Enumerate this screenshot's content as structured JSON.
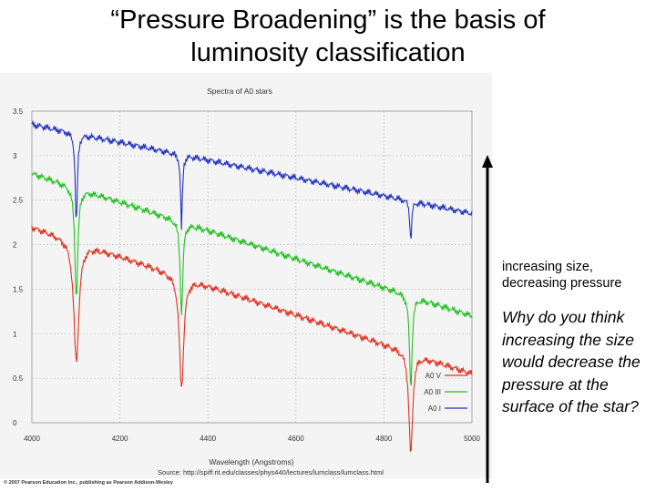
{
  "slide": {
    "title_line1": "“Pressure Broadening” is the basis of",
    "title_line2": "luminosity classification",
    "side_label_line1": "increasing size,",
    "side_label_line2": "decreasing pressure",
    "question": "Why do you think increasing the size would decrease the pressure at the surface of the star?",
    "credit": "© 2007 Pearson Education Inc., publishing as Pearson Addison-Wesley"
  },
  "colors": {
    "v": "#e03020",
    "iii": "#20c020",
    "i": "#2030c0"
  },
  "chart_data": {
    "type": "line",
    "title": "Spectra of A0 stars",
    "xlabel": "Wavelength (Angstroms)",
    "ylabel": "",
    "xlim": [
      4000,
      5000
    ],
    "ylim": [
      0,
      3.5
    ],
    "grid": true,
    "legend": "bottom-right",
    "x_ticks": [
      "4000",
      "4200",
      "4400",
      "4600",
      "4800",
      "5000"
    ],
    "y_ticks": [
      "0",
      "0.5",
      "1",
      "1.5",
      "2",
      "2.5",
      "3",
      "3.5"
    ],
    "source": "Source: http://spiff.rit.edu/classes/phys440/lectures/lumclass/lumclass.html",
    "series": [
      {
        "name": "A0 V",
        "color_key": "v",
        "start": 2.2,
        "end": 0.55,
        "lines": [
          [
            4101,
            1.35,
            7
          ],
          [
            4340,
            1.25,
            6
          ],
          [
            4861,
            1.15,
            5
          ]
        ]
      },
      {
        "name": "A0 III",
        "color_key": "iii",
        "start": 2.8,
        "end": 1.2,
        "lines": [
          [
            4101,
            1.25,
            4
          ],
          [
            4340,
            1.05,
            3.5
          ],
          [
            4861,
            1.05,
            3.5
          ]
        ]
      },
      {
        "name": "A0 I",
        "color_key": "i",
        "start": 3.35,
        "end": 2.35,
        "lines": [
          [
            4101,
            1.05,
            2.8
          ],
          [
            4340,
            0.85,
            2.3
          ],
          [
            4861,
            0.45,
            2.5
          ]
        ]
      }
    ]
  }
}
